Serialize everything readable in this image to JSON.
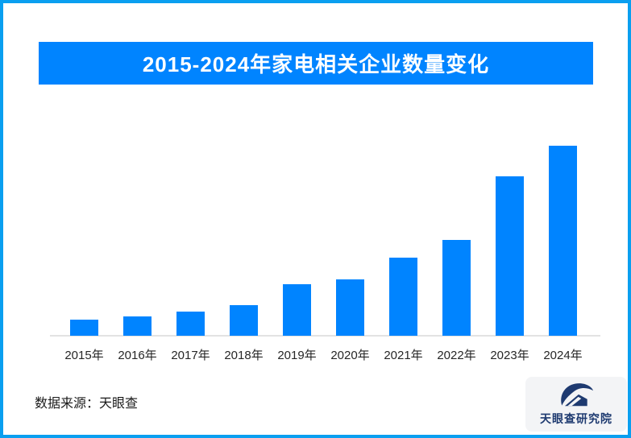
{
  "page": {
    "frame_color": "#0a9ff0",
    "background": "#ffffff"
  },
  "banner": {
    "title": "2015-2024年家电相关企业数量变化",
    "bg_color": "#0084ff",
    "text_color": "#ffffff"
  },
  "chart_data": {
    "type": "bar",
    "title": "2015-2024年家电相关企业数量变化",
    "categories": [
      "2015年",
      "2016年",
      "2017年",
      "2018年",
      "2019年",
      "2020年",
      "2021年",
      "2022年",
      "2023年",
      "2024年"
    ],
    "values": [
      8.5,
      10.2,
      12.7,
      16.1,
      27.1,
      29.7,
      41.1,
      50.4,
      83.9,
      100
    ],
    "value_scale": "relative height, % of 2024 bar (no value axis shown in image)",
    "bar_color": "#0084ff",
    "xlabel": "",
    "ylabel": "",
    "ylim": [
      0,
      100
    ],
    "grid": false,
    "legend": "none",
    "axis_line_color": "#e3e3e3"
  },
  "footer": {
    "source_label": "数据来源：天眼查"
  },
  "logo": {
    "text": "天眼查研究院",
    "icon": "tianyancha-eye-house-logo",
    "color": "#1e3a70",
    "badge_bg": "#f3f4f6"
  }
}
